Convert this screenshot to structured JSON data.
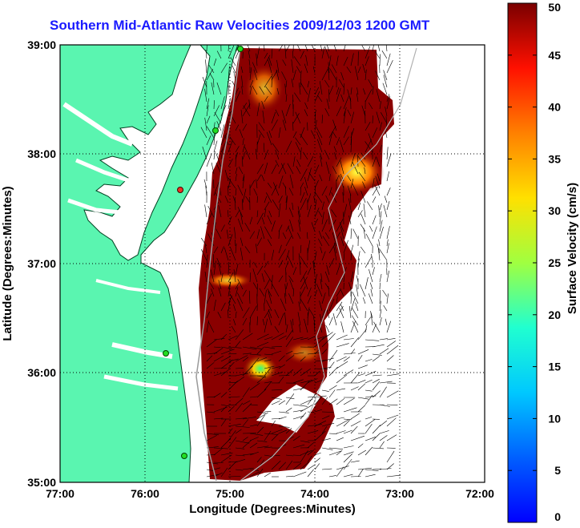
{
  "title": "Southern Mid-Atlantic Raw Velocities 2009/12/03 1200 GMT",
  "x_axis": {
    "label": "Longitude (Degrees:Minutes)",
    "ticks": [
      "77:00",
      "76:00",
      "75:00",
      "74:00",
      "73:00",
      "72:00"
    ]
  },
  "y_axis": {
    "label": "Latitude (Degrees:Minutes)",
    "ticks": [
      "39:00",
      "38:00",
      "37:00",
      "36:00",
      "35:00"
    ]
  },
  "colorbar": {
    "label": "Surface Velocity (cm/s)",
    "ticks": [
      "0",
      "5",
      "10",
      "15",
      "20",
      "25",
      "30",
      "35",
      "40",
      "45",
      "50"
    ],
    "min": 0,
    "max": 50
  },
  "colors": {
    "land": "#5af5b0",
    "water": "#ffffff",
    "title": "#1a1aff",
    "high_velocity": "#7a0000",
    "station": "#22dd22"
  },
  "chart_data": {
    "type": "heatmap",
    "title": "Southern Mid-Atlantic Raw Velocities 2009/12/03 1200 GMT",
    "xlabel": "Longitude (Degrees:Minutes)",
    "ylabel": "Latitude (Degrees:Minutes)",
    "xlim": [
      -77,
      -72
    ],
    "ylim": [
      35,
      39
    ],
    "colorbar_range": [
      0,
      50
    ],
    "colorbar_label": "Surface Velocity (cm/s)",
    "grid": true
  }
}
